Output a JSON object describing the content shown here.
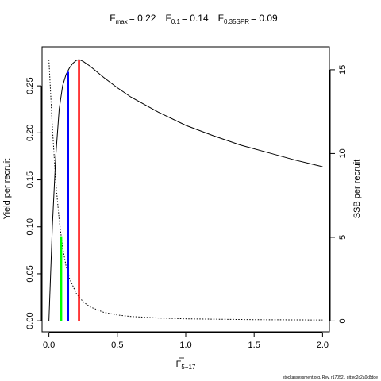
{
  "chart_data": {
    "type": "line",
    "title": {
      "fmax": {
        "sym": "F",
        "sub": "max",
        "val": "= 0.22"
      },
      "f01": {
        "sym": "F",
        "sub": "0.1",
        "val": "= 0.14"
      },
      "f35spr": {
        "sym": "F",
        "sub": "0.35SPR",
        "val": "= 0.09"
      }
    },
    "xlabel": {
      "sym": "F",
      "sub": "5−17"
    },
    "ylabel_left": "Yield per recruit",
    "ylabel_right": "SSB per recruit",
    "xlim": [
      -0.05,
      2.05
    ],
    "ylim_left": [
      -0.0117,
      0.2915
    ],
    "ylim_right": [
      -0.6432,
      16.37
    ],
    "x_ticks": [
      0,
      0.5,
      1,
      1.5,
      2
    ],
    "x_tick_labels": [
      "0.0",
      "0.5",
      "1.0",
      "1.5",
      "2.0"
    ],
    "y_left_ticks": [
      0,
      0.05,
      0.1,
      0.15,
      0.2,
      0.25
    ],
    "y_left_tick_labels": [
      "0.00",
      "0.05",
      "0.10",
      "0.15",
      "0.20",
      "0.25"
    ],
    "y_right_ticks": [
      0,
      5,
      10,
      15
    ],
    "y_right_tick_labels": [
      "0",
      "5",
      "10",
      "15"
    ],
    "series": [
      {
        "role": "yield",
        "axis": "left",
        "color": "#000000",
        "dash": "solid",
        "x": [
          0,
          0.025,
          0.05,
          0.075,
          0.1,
          0.125,
          0.15,
          0.175,
          0.2,
          0.22,
          0.25,
          0.3,
          0.35,
          0.4,
          0.5,
          0.6,
          0.8,
          1.0,
          1.2,
          1.4,
          1.6,
          1.8,
          2.0
        ],
        "y": [
          0,
          0.1,
          0.175,
          0.225,
          0.25,
          0.262,
          0.269,
          0.274,
          0.277,
          0.278,
          0.276,
          0.271,
          0.265,
          0.259,
          0.248,
          0.238,
          0.222,
          0.208,
          0.197,
          0.187,
          0.179,
          0.171,
          0.164
        ]
      },
      {
        "role": "ssb",
        "axis": "right",
        "color": "#000000",
        "dash": "dotted",
        "x": [
          0,
          0.025,
          0.05,
          0.075,
          0.1,
          0.125,
          0.15,
          0.2,
          0.25,
          0.3,
          0.4,
          0.5,
          0.6,
          0.8,
          1.0,
          1.5,
          2.0
        ],
        "y": [
          15.6,
          11.6,
          8.3,
          6.05,
          4.4,
          3.3,
          2.55,
          1.65,
          1.15,
          0.85,
          0.52,
          0.36,
          0.27,
          0.18,
          0.13,
          0.08,
          0.06
        ]
      }
    ],
    "reference_lines": [
      {
        "name": "F0.35SPR",
        "x": 0.09,
        "y_top": 0.09,
        "color": "#00ff00"
      },
      {
        "name": "F0.1",
        "x": 0.14,
        "y_top": 0.265,
        "color": "#0000ff"
      },
      {
        "name": "Fmax",
        "x": 0.22,
        "y_top": 0.278,
        "color": "#ff0000"
      }
    ],
    "grid": false,
    "legend": "none"
  },
  "footer": {
    "watermark": "stockassessment.org, Rev. r17052 , git:ec2c2a0c8dde"
  }
}
